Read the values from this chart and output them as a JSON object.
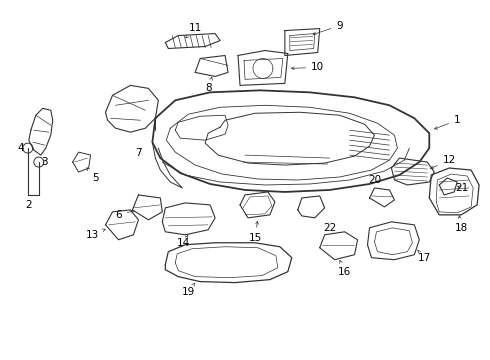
{
  "bg_color": "#ffffff",
  "line_color": "#333333",
  "label_fontsize": 7.5,
  "fig_width": 4.9,
  "fig_height": 3.6
}
